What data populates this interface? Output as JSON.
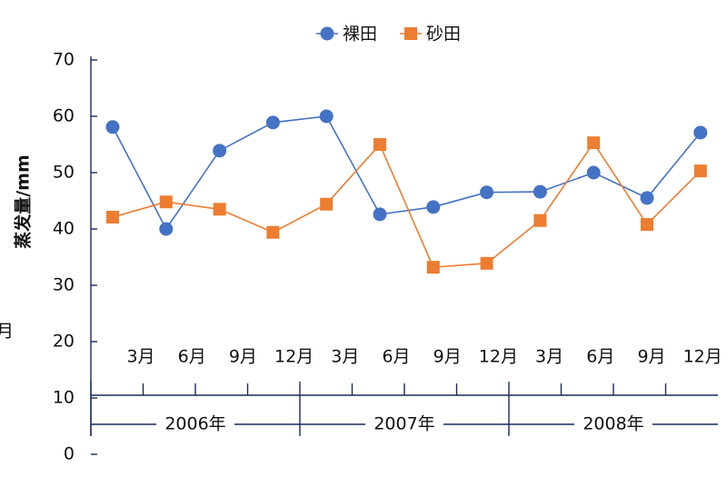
{
  "chart_data": {
    "type": "line",
    "y_label": "蒸发量/mm",
    "stray_text": "月",
    "categories": [
      "3月",
      "6月",
      "9月",
      "12月",
      "3月",
      "6月",
      "9月",
      "12月",
      "3月",
      "6月",
      "9月",
      "12月"
    ],
    "years": [
      "2006年",
      "2007年",
      "2008年"
    ],
    "series": [
      {
        "name": "裸田",
        "color": "#4472c4",
        "marker": "circle",
        "values": [
          58.1,
          40.0,
          53.9,
          58.9,
          60.0,
          42.6,
          43.9,
          46.5,
          46.6,
          50.0,
          45.5,
          57.1
        ]
      },
      {
        "name": "砂田",
        "color": "#ed7d31",
        "marker": "square",
        "values": [
          42.1,
          44.8,
          43.5,
          39.4,
          44.4,
          55.0,
          33.2,
          33.9,
          41.5,
          55.3,
          40.8,
          50.3
        ]
      }
    ],
    "ylim": [
      0,
      70
    ],
    "yticks": [
      0,
      10,
      20,
      30,
      40,
      50,
      60,
      70
    ]
  }
}
